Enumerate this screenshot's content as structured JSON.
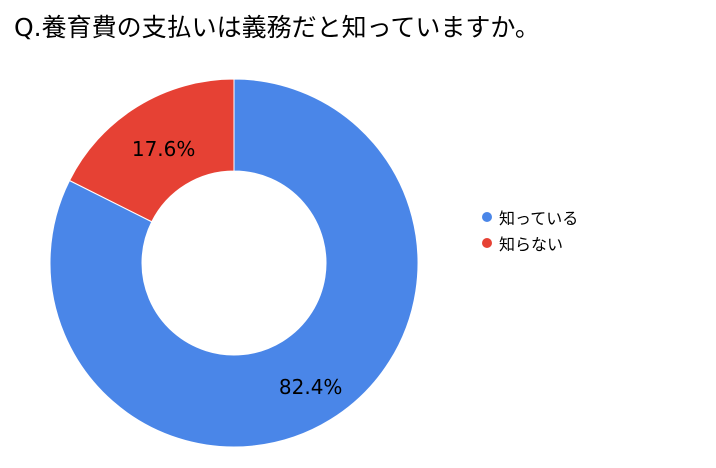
{
  "chart_data": {
    "type": "pie",
    "title": "Q.養育費の支払いは義務だと知っていますか。",
    "donut": true,
    "legend_position": "right",
    "slices": [
      {
        "label": "知っている",
        "value": 82.4,
        "value_label": "82.4%",
        "color": "#4a86e8"
      },
      {
        "label": "知らない",
        "value": 17.6,
        "value_label": "17.6%",
        "color": "#e64134"
      }
    ]
  }
}
